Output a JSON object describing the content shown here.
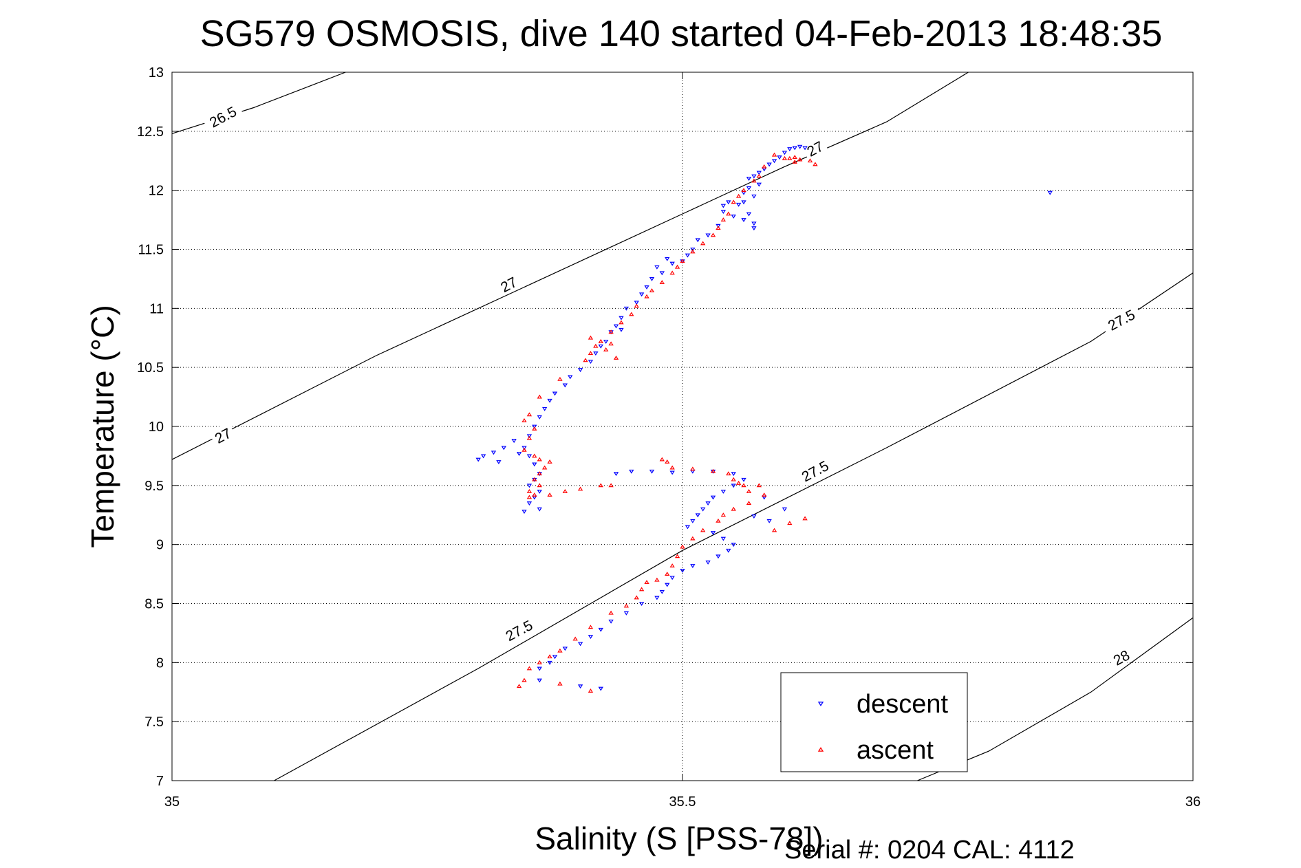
{
  "chart_data": {
    "type": "scatter",
    "title": "SG579 OSMOSIS, dive 140 started 04-Feb-2013 18:48:35",
    "xlabel": "Salinity (S [PSS-78])",
    "ylabel": "Temperature (°C)",
    "footer": "Serial #: 0204  CAL: 4112",
    "xlim": [
      35,
      36
    ],
    "ylim": [
      7,
      13
    ],
    "x_ticks": [
      "35",
      "35.5",
      "36"
    ],
    "y_ticks": [
      "7",
      "7.5",
      "8",
      "8.5",
      "9",
      "9.5",
      "10",
      "10.5",
      "11",
      "11.5",
      "12",
      "12.5",
      "13"
    ],
    "grid": true,
    "legend_position": "bottom-right",
    "colors": {
      "descent": "#0000ff",
      "ascent": "#ff0000",
      "contour": "#000000"
    },
    "contours": [
      {
        "label": "26.5",
        "points": [
          [
            35.0,
            12.48
          ],
          [
            35.08,
            12.7
          ],
          [
            35.14,
            12.9
          ],
          [
            35.17,
            13.0
          ]
        ]
      },
      {
        "label": "27",
        "points": [
          [
            35.0,
            9.72
          ],
          [
            35.2,
            10.6
          ],
          [
            35.4,
            11.4
          ],
          [
            35.5,
            11.8
          ],
          [
            35.6,
            12.2
          ],
          [
            35.7,
            12.58
          ],
          [
            35.78,
            13.0
          ]
        ]
      },
      {
        "label": "27.5",
        "points": [
          [
            35.1,
            7.0
          ],
          [
            35.3,
            7.95
          ],
          [
            35.5,
            8.95
          ],
          [
            35.7,
            9.82
          ],
          [
            35.9,
            10.72
          ],
          [
            36.0,
            11.3
          ]
        ]
      },
      {
        "label": "28",
        "points": [
          [
            35.73,
            7.0
          ],
          [
            35.8,
            7.25
          ],
          [
            35.9,
            7.75
          ],
          [
            36.0,
            8.38
          ]
        ]
      }
    ],
    "contour_labels": [
      {
        "text": "26.5",
        "x": 35.05,
        "y": 12.62,
        "angle": -28
      },
      {
        "text": "27",
        "x": 35.05,
        "y": 9.92,
        "angle": -28
      },
      {
        "text": "27",
        "x": 35.33,
        "y": 11.2,
        "angle": -28
      },
      {
        "text": "27",
        "x": 35.63,
        "y": 12.35,
        "angle": -28
      },
      {
        "text": "27.5",
        "x": 35.34,
        "y": 8.27,
        "angle": -28
      },
      {
        "text": "27.5",
        "x": 35.63,
        "y": 9.62,
        "angle": -28
      },
      {
        "text": "27.5",
        "x": 35.93,
        "y": 10.9,
        "angle": -28
      },
      {
        "text": "28",
        "x": 35.93,
        "y": 8.04,
        "angle": -28
      }
    ],
    "legend": [
      {
        "label": "descent",
        "marker": "down-triangle",
        "color": "#0000ff"
      },
      {
        "label": "ascent",
        "marker": "up-triangle",
        "color": "#ff0000"
      }
    ],
    "series": [
      {
        "name": "descent",
        "marker": "down-triangle",
        "color": "#0000ff",
        "points": [
          [
            35.605,
            12.35
          ],
          [
            35.61,
            12.36
          ],
          [
            35.615,
            12.37
          ],
          [
            35.62,
            12.36
          ],
          [
            35.6,
            12.32
          ],
          [
            35.595,
            12.28
          ],
          [
            35.59,
            12.25
          ],
          [
            35.585,
            12.22
          ],
          [
            35.58,
            12.18
          ],
          [
            35.575,
            12.15
          ],
          [
            35.57,
            12.12
          ],
          [
            35.565,
            12.1
          ],
          [
            35.575,
            12.05
          ],
          [
            35.565,
            12.02
          ],
          [
            35.56,
            11.98
          ],
          [
            35.57,
            11.95
          ],
          [
            35.56,
            11.9
          ],
          [
            35.555,
            11.88
          ],
          [
            35.545,
            11.9
          ],
          [
            35.54,
            11.87
          ],
          [
            35.54,
            11.82
          ],
          [
            35.55,
            11.78
          ],
          [
            35.565,
            11.8
          ],
          [
            35.57,
            11.72
          ],
          [
            35.535,
            11.7
          ],
          [
            35.525,
            11.62
          ],
          [
            35.515,
            11.58
          ],
          [
            35.51,
            11.5
          ],
          [
            35.505,
            11.45
          ],
          [
            35.5,
            11.4
          ],
          [
            35.49,
            11.38
          ],
          [
            35.485,
            11.42
          ],
          [
            35.475,
            11.35
          ],
          [
            35.48,
            11.3
          ],
          [
            35.47,
            11.25
          ],
          [
            35.465,
            11.18
          ],
          [
            35.46,
            11.12
          ],
          [
            35.455,
            11.05
          ],
          [
            35.445,
            11.0
          ],
          [
            35.44,
            10.92
          ],
          [
            35.435,
            10.85
          ],
          [
            35.43,
            10.8
          ],
          [
            35.44,
            10.82
          ],
          [
            35.425,
            10.72
          ],
          [
            35.42,
            10.68
          ],
          [
            35.415,
            10.62
          ],
          [
            35.41,
            10.55
          ],
          [
            35.4,
            10.48
          ],
          [
            35.39,
            10.42
          ],
          [
            35.385,
            10.35
          ],
          [
            35.375,
            10.28
          ],
          [
            35.37,
            10.22
          ],
          [
            35.365,
            10.15
          ],
          [
            35.36,
            10.08
          ],
          [
            35.355,
            10.0
          ],
          [
            35.35,
            9.92
          ],
          [
            35.345,
            9.82
          ],
          [
            35.35,
            9.75
          ],
          [
            35.355,
            9.68
          ],
          [
            35.36,
            9.6
          ],
          [
            35.355,
            9.55
          ],
          [
            35.35,
            9.5
          ],
          [
            35.36,
            9.45
          ],
          [
            35.355,
            9.4
          ],
          [
            35.35,
            9.35
          ],
          [
            35.36,
            9.3
          ],
          [
            35.345,
            9.28
          ],
          [
            35.335,
            9.88
          ],
          [
            35.325,
            9.82
          ],
          [
            35.315,
            9.78
          ],
          [
            35.305,
            9.75
          ],
          [
            35.3,
            9.72
          ],
          [
            35.32,
            9.7
          ],
          [
            35.34,
            9.77
          ],
          [
            35.435,
            9.6
          ],
          [
            35.45,
            9.62
          ],
          [
            35.47,
            9.62
          ],
          [
            35.49,
            9.61
          ],
          [
            35.51,
            9.62
          ],
          [
            35.53,
            9.62
          ],
          [
            35.55,
            9.6
          ],
          [
            35.56,
            9.55
          ],
          [
            35.55,
            9.5
          ],
          [
            35.54,
            9.45
          ],
          [
            35.53,
            9.4
          ],
          [
            35.525,
            9.35
          ],
          [
            35.52,
            9.3
          ],
          [
            35.515,
            9.25
          ],
          [
            35.51,
            9.2
          ],
          [
            35.505,
            9.15
          ],
          [
            35.53,
            9.1
          ],
          [
            35.54,
            9.05
          ],
          [
            35.55,
            9.0
          ],
          [
            35.545,
            8.95
          ],
          [
            35.535,
            8.9
          ],
          [
            35.525,
            8.85
          ],
          [
            35.51,
            8.82
          ],
          [
            35.5,
            8.78
          ],
          [
            35.49,
            8.72
          ],
          [
            35.485,
            8.66
          ],
          [
            35.48,
            8.6
          ],
          [
            35.475,
            8.55
          ],
          [
            35.46,
            8.5
          ],
          [
            35.445,
            8.42
          ],
          [
            35.43,
            8.35
          ],
          [
            35.42,
            8.28
          ],
          [
            35.41,
            8.22
          ],
          [
            35.4,
            8.16
          ],
          [
            35.385,
            8.12
          ],
          [
            35.375,
            8.05
          ],
          [
            35.37,
            8.0
          ],
          [
            35.36,
            7.95
          ],
          [
            35.36,
            7.85
          ],
          [
            35.4,
            7.8
          ],
          [
            35.42,
            7.78
          ],
          [
            35.585,
            9.2
          ],
          [
            35.57,
            9.24
          ],
          [
            35.6,
            9.3
          ],
          [
            35.58,
            9.4
          ],
          [
            35.86,
            11.98
          ],
          [
            35.56,
            11.75
          ],
          [
            35.57,
            11.68
          ]
        ]
      },
      {
        "name": "ascent",
        "marker": "up-triangle",
        "color": "#ff0000",
        "points": [
          [
            35.6,
            12.27
          ],
          [
            35.605,
            12.27
          ],
          [
            35.61,
            12.28
          ],
          [
            35.615,
            12.26
          ],
          [
            35.625,
            12.25
          ],
          [
            35.59,
            12.3
          ],
          [
            35.58,
            12.2
          ],
          [
            35.575,
            12.12
          ],
          [
            35.57,
            12.08
          ],
          [
            35.56,
            12.0
          ],
          [
            35.555,
            11.95
          ],
          [
            35.55,
            11.9
          ],
          [
            35.545,
            11.8
          ],
          [
            35.54,
            11.75
          ],
          [
            35.535,
            11.68
          ],
          [
            35.53,
            11.62
          ],
          [
            35.52,
            11.55
          ],
          [
            35.51,
            11.48
          ],
          [
            35.5,
            11.4
          ],
          [
            35.495,
            11.35
          ],
          [
            35.49,
            11.3
          ],
          [
            35.48,
            11.22
          ],
          [
            35.47,
            11.15
          ],
          [
            35.465,
            11.1
          ],
          [
            35.455,
            11.02
          ],
          [
            35.45,
            10.95
          ],
          [
            35.44,
            10.88
          ],
          [
            35.43,
            10.8
          ],
          [
            35.42,
            10.72
          ],
          [
            35.415,
            10.68
          ],
          [
            35.41,
            10.62
          ],
          [
            35.405,
            10.56
          ],
          [
            35.425,
            10.65
          ],
          [
            35.43,
            10.7
          ],
          [
            35.435,
            10.58
          ],
          [
            35.41,
            10.75
          ],
          [
            35.38,
            10.4
          ],
          [
            35.36,
            10.25
          ],
          [
            35.35,
            10.1
          ],
          [
            35.345,
            10.05
          ],
          [
            35.355,
            9.98
          ],
          [
            35.35,
            9.9
          ],
          [
            35.345,
            9.8
          ],
          [
            35.355,
            9.75
          ],
          [
            35.36,
            9.72
          ],
          [
            35.37,
            9.7
          ],
          [
            35.365,
            9.65
          ],
          [
            35.36,
            9.6
          ],
          [
            35.355,
            9.55
          ],
          [
            35.36,
            9.5
          ],
          [
            35.35,
            9.45
          ],
          [
            35.355,
            9.42
          ],
          [
            35.35,
            9.4
          ],
          [
            35.37,
            9.42
          ],
          [
            35.385,
            9.45
          ],
          [
            35.4,
            9.47
          ],
          [
            35.42,
            9.5
          ],
          [
            35.43,
            9.5
          ],
          [
            35.48,
            9.72
          ],
          [
            35.485,
            9.7
          ],
          [
            35.49,
            9.65
          ],
          [
            35.51,
            9.64
          ],
          [
            35.53,
            9.62
          ],
          [
            35.545,
            9.6
          ],
          [
            35.55,
            9.55
          ],
          [
            35.555,
            9.52
          ],
          [
            35.56,
            9.5
          ],
          [
            35.565,
            9.45
          ],
          [
            35.575,
            9.5
          ],
          [
            35.58,
            9.42
          ],
          [
            35.565,
            9.35
          ],
          [
            35.55,
            9.3
          ],
          [
            35.54,
            9.25
          ],
          [
            35.535,
            9.2
          ],
          [
            35.52,
            9.12
          ],
          [
            35.51,
            9.05
          ],
          [
            35.5,
            8.98
          ],
          [
            35.495,
            8.9
          ],
          [
            35.49,
            8.82
          ],
          [
            35.485,
            8.75
          ],
          [
            35.475,
            8.7
          ],
          [
            35.465,
            8.68
          ],
          [
            35.46,
            8.62
          ],
          [
            35.455,
            8.55
          ],
          [
            35.445,
            8.48
          ],
          [
            35.43,
            8.42
          ],
          [
            35.41,
            8.3
          ],
          [
            35.395,
            8.2
          ],
          [
            35.38,
            8.1
          ],
          [
            35.37,
            8.05
          ],
          [
            35.36,
            8.0
          ],
          [
            35.35,
            7.95
          ],
          [
            35.345,
            7.85
          ],
          [
            35.34,
            7.8
          ],
          [
            35.38,
            7.82
          ],
          [
            35.41,
            7.76
          ],
          [
            35.62,
            9.22
          ],
          [
            35.605,
            9.18
          ],
          [
            35.59,
            9.12
          ],
          [
            35.63,
            12.22
          ],
          [
            35.61,
            12.24
          ]
        ]
      }
    ]
  }
}
